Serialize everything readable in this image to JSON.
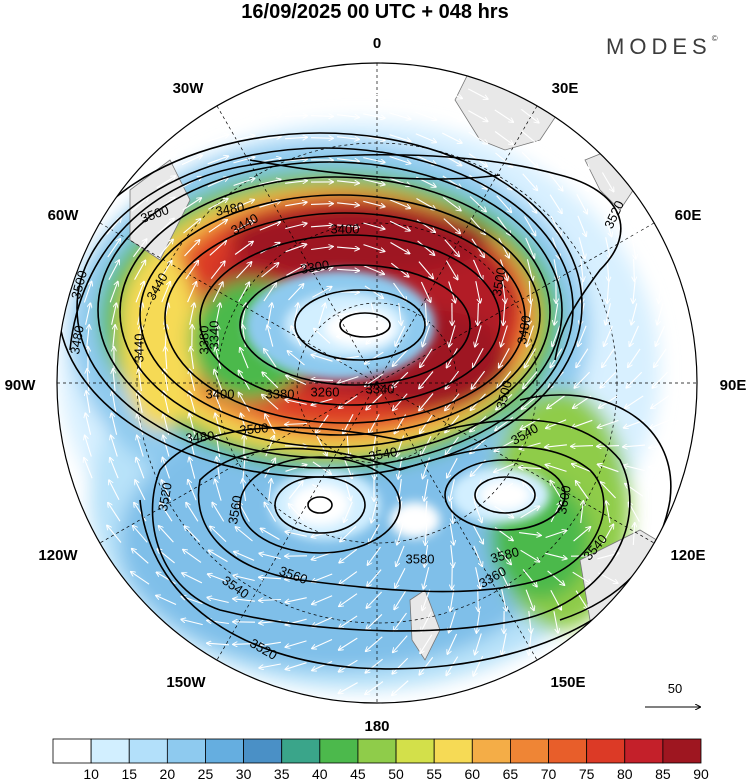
{
  "title": "16/09/2025  00 UTC  + 048 hrs",
  "brand": "MODES",
  "brand_mark": "©",
  "longitude_labels": [
    "0",
    "30E",
    "60E",
    "90E",
    "120E",
    "150E",
    "180",
    "150W",
    "120W",
    "90W",
    "60W",
    "30W"
  ],
  "contour_labels": [
    "3520",
    "3480",
    "3500",
    "3540",
    "3600",
    "3360",
    "3540",
    "3580",
    "3580",
    "3560",
    "3540",
    "3520",
    "3560",
    "3520",
    "3480",
    "3500",
    "3540",
    "3400",
    "3380",
    "3260",
    "3340",
    "3500",
    "3480",
    "3440",
    "3440",
    "3380",
    "3340",
    "3500",
    "3480",
    "3500",
    "3440",
    "3400",
    "3300"
  ],
  "wind_reference": {
    "value": "50"
  },
  "colorbar": {
    "ticks": [
      "10",
      "15",
      "20",
      "25",
      "30",
      "35",
      "40",
      "45",
      "50",
      "55",
      "60",
      "65",
      "70",
      "75",
      "80",
      "85",
      "90"
    ],
    "colors": [
      "#ffffff",
      "#d2efff",
      "#b3e0fa",
      "#8ecaef",
      "#65aee0",
      "#4a90c6",
      "#3aa58a",
      "#4cb94c",
      "#8fcc4a",
      "#d3e04a",
      "#f6da55",
      "#f4ad47",
      "#ef8535",
      "#e85e2a",
      "#dc3a26",
      "#c4202a",
      "#9e1620"
    ]
  }
}
